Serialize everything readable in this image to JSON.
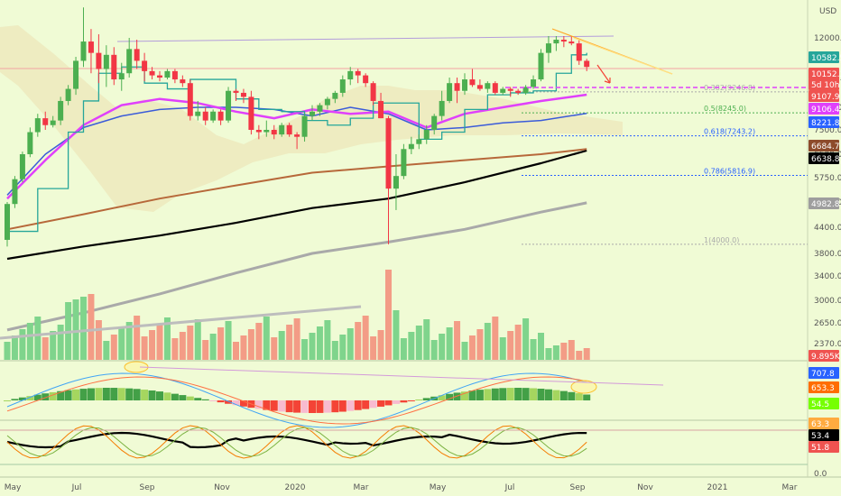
{
  "chart_data": [
    {
      "type": "candlestick",
      "panel": "price",
      "currency": "USD",
      "y_ticks": [
        "12000.0",
        "10000.0",
        "8500.0",
        "7500.0",
        "6500.0",
        "5750.0",
        "5000.0",
        "4400.0",
        "3800.0",
        "3400.0",
        "3000.0",
        "2650.0",
        "2370.0"
      ],
      "weeks": [
        {
          "o": 4100,
          "h": 5000,
          "l": 3950,
          "c": 4950
        },
        {
          "o": 4950,
          "h": 5800,
          "l": 4850,
          "c": 5700
        },
        {
          "o": 5700,
          "h": 6600,
          "l": 5600,
          "c": 6500
        },
        {
          "o": 6500,
          "h": 7600,
          "l": 6400,
          "c": 7400
        },
        {
          "o": 7400,
          "h": 8200,
          "l": 7200,
          "c": 8000
        },
        {
          "o": 8000,
          "h": 8300,
          "l": 7500,
          "c": 7700
        },
        {
          "o": 7700,
          "h": 8100,
          "l": 7600,
          "c": 7900
        },
        {
          "o": 7900,
          "h": 9000,
          "l": 7700,
          "c": 8800
        },
        {
          "o": 8800,
          "h": 9600,
          "l": 8600,
          "c": 9400
        },
        {
          "o": 9400,
          "h": 11000,
          "l": 9100,
          "c": 10800
        },
        {
          "o": 10800,
          "h": 13800,
          "l": 10500,
          "c": 11800
        },
        {
          "o": 11800,
          "h": 12500,
          "l": 10200,
          "c": 11200
        },
        {
          "o": 11200,
          "h": 12200,
          "l": 9700,
          "c": 10400
        },
        {
          "o": 10400,
          "h": 11600,
          "l": 9500,
          "c": 11100
        },
        {
          "o": 11100,
          "h": 11500,
          "l": 9600,
          "c": 9900
        },
        {
          "o": 9900,
          "h": 10700,
          "l": 9300,
          "c": 10200
        },
        {
          "o": 10200,
          "h": 12000,
          "l": 10000,
          "c": 11400
        },
        {
          "o": 11400,
          "h": 11900,
          "l": 10400,
          "c": 10800
        },
        {
          "o": 10800,
          "h": 11200,
          "l": 9800,
          "c": 10300
        },
        {
          "o": 10300,
          "h": 10500,
          "l": 9900,
          "c": 10100
        },
        {
          "o": 10100,
          "h": 10300,
          "l": 9800,
          "c": 10000
        },
        {
          "o": 10000,
          "h": 10400,
          "l": 9900,
          "c": 10300
        },
        {
          "o": 10300,
          "h": 10400,
          "l": 9700,
          "c": 9900
        },
        {
          "o": 9900,
          "h": 10100,
          "l": 9500,
          "c": 9700
        },
        {
          "o": 9700,
          "h": 9900,
          "l": 7900,
          "c": 8100
        },
        {
          "o": 8100,
          "h": 8800,
          "l": 7900,
          "c": 8300
        },
        {
          "o": 8300,
          "h": 8500,
          "l": 7700,
          "c": 7900
        },
        {
          "o": 7900,
          "h": 8400,
          "l": 7800,
          "c": 8300
        },
        {
          "o": 8300,
          "h": 8400,
          "l": 7700,
          "c": 7900
        },
        {
          "o": 7900,
          "h": 9500,
          "l": 7800,
          "c": 9300
        },
        {
          "o": 9300,
          "h": 9400,
          "l": 8800,
          "c": 9200
        },
        {
          "o": 9200,
          "h": 9400,
          "l": 8700,
          "c": 9000
        },
        {
          "o": 9000,
          "h": 9300,
          "l": 7300,
          "c": 7500
        },
        {
          "o": 7500,
          "h": 7700,
          "l": 7100,
          "c": 7400
        },
        {
          "o": 7400,
          "h": 7900,
          "l": 7200,
          "c": 7500
        },
        {
          "o": 7500,
          "h": 7700,
          "l": 7100,
          "c": 7300
        },
        {
          "o": 7300,
          "h": 7800,
          "l": 7200,
          "c": 7700
        },
        {
          "o": 7700,
          "h": 7800,
          "l": 7200,
          "c": 7300
        },
        {
          "o": 7300,
          "h": 7400,
          "l": 6700,
          "c": 7200
        },
        {
          "o": 7200,
          "h": 8200,
          "l": 7000,
          "c": 8100
        },
        {
          "o": 8100,
          "h": 8600,
          "l": 7900,
          "c": 8300
        },
        {
          "o": 8300,
          "h": 8700,
          "l": 8100,
          "c": 8600
        },
        {
          "o": 8600,
          "h": 9000,
          "l": 8400,
          "c": 8900
        },
        {
          "o": 8900,
          "h": 9300,
          "l": 8700,
          "c": 9200
        },
        {
          "o": 9200,
          "h": 10100,
          "l": 9000,
          "c": 9900
        },
        {
          "o": 9900,
          "h": 10500,
          "l": 9600,
          "c": 10300
        },
        {
          "o": 10300,
          "h": 10400,
          "l": 9700,
          "c": 10100
        },
        {
          "o": 10100,
          "h": 10200,
          "l": 9500,
          "c": 9700
        },
        {
          "o": 9700,
          "h": 9800,
          "l": 8600,
          "c": 8800
        },
        {
          "o": 8800,
          "h": 9200,
          "l": 8000,
          "c": 8000
        },
        {
          "o": 8000,
          "h": 8100,
          "l": 4000,
          "c": 5400
        },
        {
          "o": 5400,
          "h": 6500,
          "l": 4800,
          "c": 5800
        },
        {
          "o": 5800,
          "h": 6900,
          "l": 5700,
          "c": 6700
        },
        {
          "o": 6700,
          "h": 7200,
          "l": 6500,
          "c": 6900
        },
        {
          "o": 6900,
          "h": 7300,
          "l": 6700,
          "c": 7100
        },
        {
          "o": 7100,
          "h": 7700,
          "l": 6900,
          "c": 7500
        },
        {
          "o": 7500,
          "h": 8200,
          "l": 7300,
          "c": 8100
        },
        {
          "o": 8100,
          "h": 9300,
          "l": 7900,
          "c": 8800
        },
        {
          "o": 8800,
          "h": 10000,
          "l": 8700,
          "c": 9700
        },
        {
          "o": 9700,
          "h": 10000,
          "l": 8700,
          "c": 9300
        },
        {
          "o": 9300,
          "h": 10200,
          "l": 9100,
          "c": 9900
        },
        {
          "o": 9900,
          "h": 10400,
          "l": 9500,
          "c": 9600
        },
        {
          "o": 9600,
          "h": 9900,
          "l": 9300,
          "c": 9400
        },
        {
          "o": 9400,
          "h": 9800,
          "l": 9200,
          "c": 9700
        },
        {
          "o": 9700,
          "h": 9800,
          "l": 9100,
          "c": 9200
        },
        {
          "o": 9200,
          "h": 9500,
          "l": 9100,
          "c": 9400
        },
        {
          "o": 9400,
          "h": 9500,
          "l": 9000,
          "c": 9300
        },
        {
          "o": 9300,
          "h": 9400,
          "l": 9100,
          "c": 9200
        },
        {
          "o": 9200,
          "h": 9600,
          "l": 9100,
          "c": 9500
        },
        {
          "o": 9500,
          "h": 10100,
          "l": 9400,
          "c": 9900
        },
        {
          "o": 9900,
          "h": 11400,
          "l": 9800,
          "c": 11200
        },
        {
          "o": 11200,
          "h": 12100,
          "l": 10700,
          "c": 11700
        },
        {
          "o": 11700,
          "h": 12100,
          "l": 11300,
          "c": 11900
        },
        {
          "o": 11900,
          "h": 12100,
          "l": 11500,
          "c": 11800
        },
        {
          "o": 11800,
          "h": 12100,
          "l": 11600,
          "c": 11700
        },
        {
          "o": 11700,
          "h": 11900,
          "l": 10600,
          "c": 10800
        },
        {
          "o": 10800,
          "h": 10900,
          "l": 10300,
          "c": 10500
        }
      ],
      "horizontal_levels": [
        {
          "label": "0.382(9246.8)",
          "value": 9246.8,
          "color": "#aaaaaa"
        },
        {
          "label": "0.5(8245.0)",
          "value": 8245.0,
          "color": "#4caf50"
        },
        {
          "label": "0.618(7243.2)",
          "value": 7243.2,
          "color": "#2962ff"
        },
        {
          "label": "0.786(5816.9)",
          "value": 5816.9,
          "color": "#2962ff"
        },
        {
          "label": "1(4000.0)",
          "value": 4000.0,
          "color": "#aaaaaa"
        }
      ],
      "price_badges": [
        {
          "text": "10582.5",
          "color": "#26a69a"
        },
        {
          "text": "10152.3",
          "color": "#ef5350"
        },
        {
          "text": "5d 10h",
          "color": "#ef5350"
        },
        {
          "text": "9107.9",
          "color": "#ef5350"
        },
        {
          "text": "9106.4",
          "color": "#e040fb"
        },
        {
          "text": "8221.8",
          "color": "#2962ff"
        },
        {
          "text": "6684.7",
          "color": "#8d4b2b"
        },
        {
          "text": "6638.8",
          "color": "#000000"
        },
        {
          "text": "4982.8",
          "color": "#9e9e9e"
        }
      ],
      "volume_badge": {
        "text": "9.895K",
        "color": "#ef5350"
      }
    },
    {
      "type": "histogram",
      "panel": "macd",
      "badges": [
        {
          "text": "707.8",
          "color": "#2962ff"
        },
        {
          "text": "653.3",
          "color": "#ff6d00"
        },
        {
          "text": "54.5",
          "color": "#76ff03"
        }
      ]
    },
    {
      "type": "line",
      "panel": "oscillator",
      "y_ticks": [
        "0.0"
      ],
      "badges": [
        {
          "text": "63.3",
          "color": "#ffab40"
        },
        {
          "text": "53.4",
          "color": "#000000"
        },
        {
          "text": "51.8",
          "color": "#ef5350"
        }
      ]
    }
  ],
  "x_labels": [
    "May",
    "Jul",
    "Sep",
    "Nov",
    "2020",
    "Mar",
    "May",
    "Jul",
    "Sep",
    "Nov",
    "2021",
    "Mar"
  ],
  "colors": {
    "background": "#f0fbd5",
    "up": "#4caf50",
    "down": "#f23645"
  }
}
